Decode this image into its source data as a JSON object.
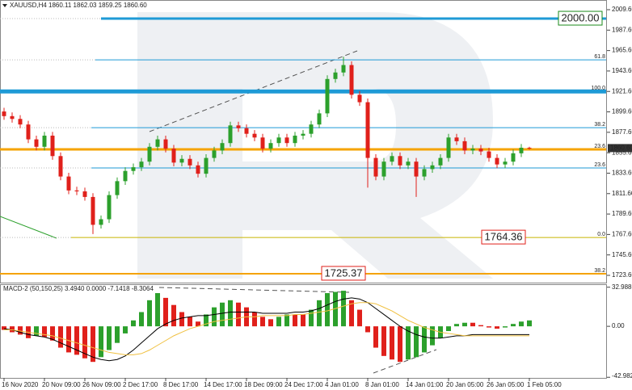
{
  "chart_data": [
    {
      "type": "candlestick",
      "title": "XAUUSD,H4  1860.11 1862.03 1859.25 1860.60",
      "categories": [
        "16 Nov 2020",
        null,
        null,
        null,
        null,
        "20 Nov 09:00",
        null,
        null,
        null,
        null,
        "26 Nov 09:00",
        null,
        null,
        null,
        null,
        "2 Dec 17:00",
        null,
        null,
        null,
        null,
        "8 Dec 17:00",
        null,
        null,
        null,
        null,
        "14 Dec 17:00",
        null,
        null,
        null,
        null,
        "18 Dec 09:00",
        null,
        null,
        null,
        null,
        "24 Dec 17:00",
        null,
        null,
        null,
        null,
        "4 Jan 01:00",
        null,
        null,
        null,
        null,
        "8 Jan 01:00",
        null,
        null,
        null,
        null,
        "14 Jan 01:00",
        null,
        null,
        null,
        null,
        "20 Jan 05:00",
        null,
        null,
        null,
        null,
        "26 Jan 05:00",
        null,
        null,
        null,
        null,
        "1 Feb 05:00"
      ],
      "open": [
        1900,
        1895,
        1892,
        1886,
        1870,
        1862,
        1874,
        1852,
        1830,
        1815,
        1814,
        1808,
        1778,
        1784,
        1810,
        1825,
        1836,
        1840,
        1846,
        1862,
        1870,
        1860,
        1845,
        1849,
        1842,
        1833,
        1850,
        1858,
        1866,
        1885,
        1882,
        1876,
        1872,
        1860,
        1866,
        1872,
        1866,
        1874,
        1876,
        1886,
        1898,
        1935,
        1942,
        1950,
        1918,
        1910,
        1850,
        1830,
        1846,
        1852,
        1842,
        1846,
        1830,
        1838,
        1842,
        1850,
        1872,
        1868,
        1858,
        1860,
        1857,
        1850,
        1843,
        1846,
        1855,
        1861
      ],
      "high": [
        1904,
        1899,
        1896,
        1890,
        1874,
        1878,
        1878,
        1856,
        1834,
        1819,
        1818,
        1812,
        1788,
        1814,
        1829,
        1840,
        1844,
        1850,
        1866,
        1874,
        1874,
        1864,
        1853,
        1853,
        1846,
        1854,
        1862,
        1870,
        1889,
        1889,
        1886,
        1880,
        1876,
        1870,
        1876,
        1876,
        1878,
        1880,
        1890,
        1902,
        1939,
        1946,
        1959,
        1954,
        1922,
        1914,
        1854,
        1850,
        1856,
        1856,
        1850,
        1850,
        1842,
        1846,
        1854,
        1876,
        1876,
        1872,
        1864,
        1864,
        1861,
        1854,
        1850,
        1859,
        1865,
        1862
      ],
      "low": [
        1891,
        1888,
        1882,
        1866,
        1858,
        1858,
        1848,
        1826,
        1811,
        1810,
        1804,
        1768,
        1774,
        1780,
        1806,
        1821,
        1832,
        1836,
        1842,
        1858,
        1856,
        1841,
        1841,
        1838,
        1829,
        1829,
        1846,
        1854,
        1862,
        1878,
        1872,
        1868,
        1856,
        1856,
        1862,
        1862,
        1862,
        1870,
        1872,
        1882,
        1894,
        1931,
        1938,
        1914,
        1906,
        1818,
        1826,
        1826,
        1842,
        1838,
        1838,
        1808,
        1826,
        1834,
        1838,
        1846,
        1864,
        1854,
        1854,
        1853,
        1846,
        1839,
        1839,
        1842,
        1851,
        1859
      ],
      "close": [
        1895,
        1892,
        1886,
        1870,
        1862,
        1874,
        1852,
        1830,
        1815,
        1814,
        1808,
        1778,
        1784,
        1810,
        1825,
        1836,
        1840,
        1846,
        1862,
        1870,
        1860,
        1845,
        1849,
        1842,
        1833,
        1850,
        1858,
        1866,
        1885,
        1882,
        1876,
        1872,
        1860,
        1866,
        1872,
        1866,
        1874,
        1876,
        1886,
        1898,
        1935,
        1942,
        1950,
        1918,
        1910,
        1850,
        1830,
        1846,
        1852,
        1842,
        1846,
        1830,
        1838,
        1842,
        1850,
        1872,
        1868,
        1858,
        1860,
        1857,
        1850,
        1843,
        1846,
        1855,
        1861,
        1860.6
      ],
      "up_color": "#2ca02c",
      "down_color": "#e0201b",
      "ylim": [
        1715.78,
        2020.03
      ],
      "yticks": [
        {
          "value": 2009.6,
          "label": "2009.60"
        },
        {
          "value": 1987.6,
          "label": "1987.60"
        },
        {
          "value": 1965.6,
          "label": "1965.60"
        },
        {
          "value": 1943.6,
          "label": "1943.60"
        },
        {
          "value": 1921.6,
          "label": "1921.60"
        },
        {
          "value": 1899.6,
          "label": "1899.60"
        },
        {
          "value": 1877.6,
          "label": "1877.60"
        },
        {
          "value": 1855.6,
          "label": "1855.60"
        },
        {
          "value": 1833.6,
          "label": "1833.60"
        },
        {
          "value": 1811.6,
          "label": "1811.60"
        },
        {
          "value": 1789.6,
          "label": "1789.60"
        },
        {
          "value": 1767.6,
          "label": "1767.60"
        },
        {
          "value": 1745.6,
          "label": "1745.60"
        },
        {
          "value": 1723.6,
          "label": "1723.60"
        }
      ],
      "last": {
        "value": 1860.6,
        "label": "1860.60"
      },
      "levels": [
        {
          "value": 2000,
          "color": "#1e9ad6",
          "box": "2000.00",
          "box_color": "#1a8a1a"
        },
        {
          "value": 1955.6,
          "label": "61.8",
          "color": "#1e9ad6"
        },
        {
          "value": 1921.6,
          "label": "100.0",
          "color": "#1e9ad6"
        },
        {
          "value": 1882.6,
          "label": "38.2",
          "color": "#1e9ad6"
        },
        {
          "value": 1839.2,
          "label": "23.6",
          "color": "#1e9ad6"
        },
        {
          "value": 1859.2,
          "label": "23.6",
          "color": "#f5a300"
        },
        {
          "value": 1764.36,
          "label": "0.0",
          "color": "#c8b400",
          "box": "1764.36",
          "box_color": "#e0201b"
        },
        {
          "value": 1725.37,
          "label": "38.2",
          "color": "#f5a300",
          "box": "1725.37",
          "box_color": "#e0201b"
        }
      ]
    },
    {
      "type": "bar",
      "title": "MACD-2 (50,150,25) 3.4940 0.0000 -7.1418 -8.3064",
      "series": [
        {
          "color": "#2ca02c",
          "down_color": "#e0201b",
          "values": [
            -3,
            -5,
            -7,
            -10,
            -8,
            -9,
            -12,
            -18,
            -22,
            -24,
            -27,
            -30,
            -26,
            -20,
            -14,
            -6,
            5,
            12,
            22,
            28,
            24,
            18,
            12,
            8,
            4,
            10,
            16,
            20,
            22,
            20,
            16,
            12,
            8,
            6,
            8,
            10,
            10,
            10,
            14,
            22,
            28,
            29,
            30,
            22,
            14,
            -5,
            -18,
            -25,
            -28,
            -30,
            -28,
            -26,
            -22,
            -16,
            -10,
            -4,
            2,
            3,
            3,
            1,
            -1,
            -2,
            -1,
            2,
            4,
            5
          ]
        }
      ],
      "lines": [
        {
          "color": "#000000",
          "values": [
            -2,
            -3,
            -5,
            -7,
            -8,
            -9,
            -11,
            -14,
            -17,
            -20,
            -23,
            -26,
            -28,
            -29,
            -28,
            -25,
            -20,
            -14,
            -8,
            -2,
            2,
            5,
            7,
            8,
            9,
            9,
            10,
            11,
            12,
            12,
            12,
            12,
            11,
            11,
            11,
            11,
            12,
            12,
            13,
            15,
            18,
            21,
            23,
            24,
            23,
            20,
            15,
            10,
            5,
            0,
            -4,
            -7,
            -9,
            -10,
            -10,
            -9,
            -8,
            -8,
            -7,
            -7,
            -7,
            -7,
            -7,
            -7,
            -7,
            -7
          ]
        },
        {
          "color": "#f0c040",
          "values": [
            -3,
            -3,
            -4,
            -5,
            -6,
            -7,
            -8,
            -10,
            -12,
            -14,
            -16,
            -18,
            -20,
            -22,
            -23,
            -24,
            -24,
            -23,
            -20,
            -16,
            -12,
            -8,
            -5,
            -2,
            0,
            2,
            4,
            5,
            6,
            7,
            8,
            8,
            9,
            9,
            9,
            9,
            10,
            10,
            11,
            12,
            13,
            15,
            17,
            19,
            20,
            20,
            19,
            16,
            13,
            9,
            5,
            2,
            -1,
            -3,
            -5,
            -6,
            -7,
            -8,
            -8,
            -8,
            -8,
            -8,
            -8,
            -8,
            -8,
            -8
          ]
        }
      ],
      "ylim": [
        -43.5,
        35.5
      ],
      "yticks": [
        32.9886,
        {
          "value": 0,
          "label": "0.00"
        },
        -42.9821
      ]
    }
  ]
}
